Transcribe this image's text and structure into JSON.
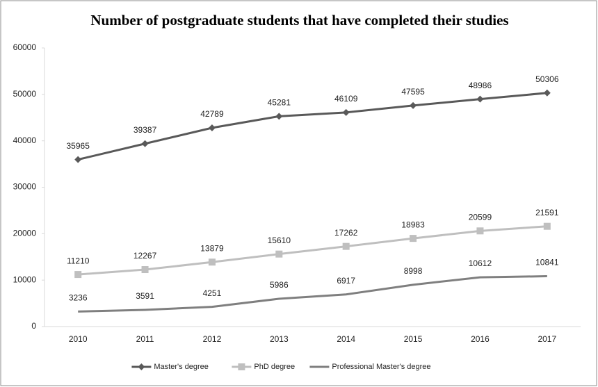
{
  "chart_data": {
    "type": "line",
    "title": "Number of postgraduate students that have completed their studies",
    "categories": [
      "2010",
      "2011",
      "2012",
      "2013",
      "2014",
      "2015",
      "2016",
      "2017"
    ],
    "series": [
      {
        "name": "Master's degree",
        "color": "#595959",
        "marker": "diamond",
        "values": [
          35965,
          39387,
          42789,
          45281,
          46109,
          47595,
          48986,
          50306
        ]
      },
      {
        "name": "PhD degree",
        "color": "#bfbfbf",
        "marker": "square",
        "values": [
          11210,
          12267,
          13879,
          15610,
          17262,
          18983,
          20599,
          21591
        ]
      },
      {
        "name": "Professional Master's degree",
        "color": "#7f7f7f",
        "marker": "none",
        "values": [
          3236,
          3591,
          4251,
          5986,
          6917,
          8998,
          10612,
          10841
        ]
      }
    ],
    "ylim": [
      0,
      60000
    ],
    "yticks": [
      0,
      10000,
      20000,
      30000,
      40000,
      50000,
      60000
    ],
    "grid": false,
    "legend": "bottom"
  }
}
